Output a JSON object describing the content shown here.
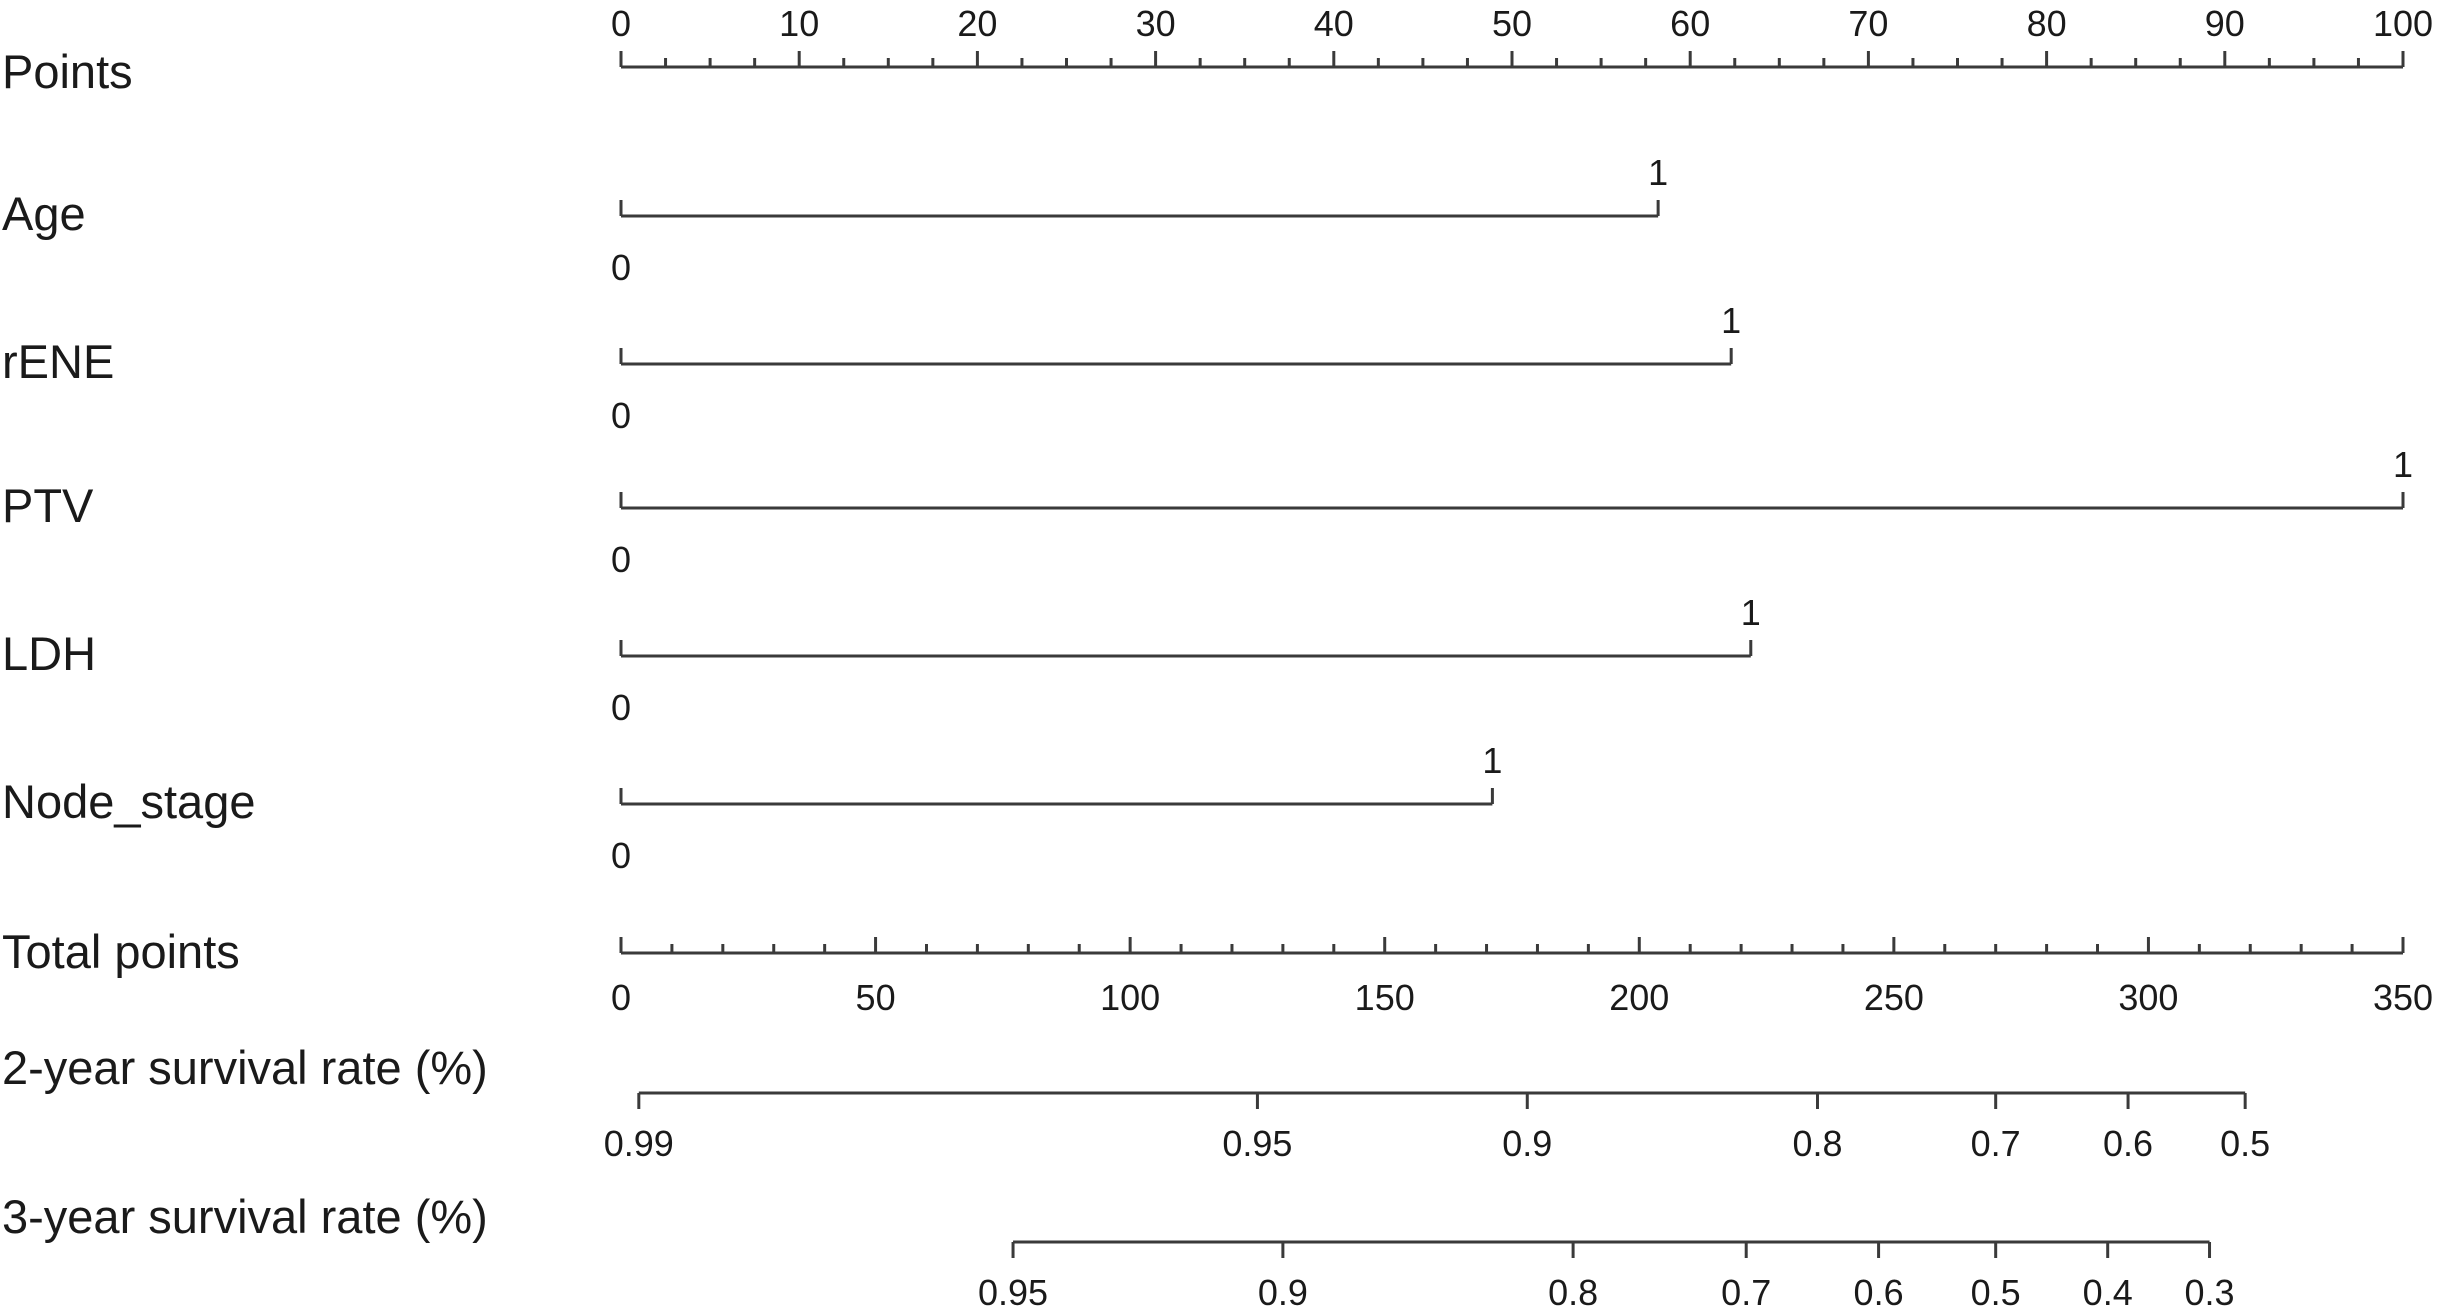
{
  "chart_data": {
    "type": "nomogram",
    "title": "",
    "points_scale": {
      "label": "Points",
      "range": [
        0,
        100
      ],
      "tick_labels": [
        "0",
        "10",
        "20",
        "30",
        "40",
        "50",
        "60",
        "70",
        "80",
        "90",
        "100"
      ],
      "minor_step": 2.5
    },
    "predictors": [
      {
        "name": "Age",
        "levels": [
          "0",
          "1"
        ],
        "points": [
          0,
          58.2
        ]
      },
      {
        "name": "rENE",
        "levels": [
          "0",
          "1"
        ],
        "points": [
          0,
          62.3
        ]
      },
      {
        "name": "PTV",
        "levels": [
          "0",
          "1"
        ],
        "points": [
          0,
          100
        ]
      },
      {
        "name": "LDH",
        "levels": [
          "0",
          "1"
        ],
        "points": [
          0,
          63.4
        ]
      },
      {
        "name": "Node_stage",
        "levels": [
          "0",
          "1"
        ],
        "points": [
          0,
          48.9
        ]
      }
    ],
    "total_points_scale": {
      "label": "Total points",
      "range": [
        0,
        350
      ],
      "tick_labels": [
        "0",
        "50",
        "100",
        "150",
        "200",
        "250",
        "300",
        "350"
      ],
      "minor_step": 10
    },
    "outcomes": [
      {
        "label": "2-year survival rate (%)",
        "ticks": [
          {
            "label": "0.99",
            "total_points": 3.5
          },
          {
            "label": "0.95",
            "total_points": 125
          },
          {
            "label": "0.9",
            "total_points": 178
          },
          {
            "label": "0.8",
            "total_points": 235
          },
          {
            "label": "0.7",
            "total_points": 270
          },
          {
            "label": "0.6",
            "total_points": 296
          },
          {
            "label": "0.5",
            "total_points": 319
          }
        ]
      },
      {
        "label": "3-year survival rate (%)",
        "ticks": [
          {
            "label": "0.95",
            "total_points": 77
          },
          {
            "label": "0.9",
            "total_points": 130
          },
          {
            "label": "0.8",
            "total_points": 187
          },
          {
            "label": "0.7",
            "total_points": 221
          },
          {
            "label": "0.6",
            "total_points": 247
          },
          {
            "label": "0.5",
            "total_points": 270
          },
          {
            "label": "0.4",
            "total_points": 292
          },
          {
            "label": "0.3",
            "total_points": 312
          }
        ]
      }
    ],
    "colors": {
      "line": "#3a3a3a",
      "text": "#1a1a1a",
      "background": "#ffffff"
    }
  }
}
